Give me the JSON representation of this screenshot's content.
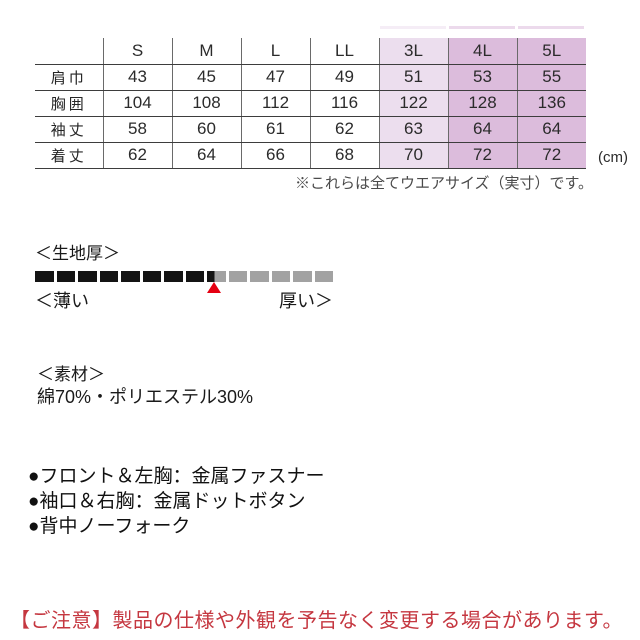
{
  "size_table": {
    "unit_label": "(cm)",
    "columns": [
      "S",
      "M",
      "L",
      "LL",
      "3L",
      "4L",
      "5L"
    ],
    "rows": [
      {
        "label": "肩巾",
        "values": [
          43,
          45,
          47,
          49,
          51,
          53,
          55
        ]
      },
      {
        "label": "胸囲",
        "values": [
          104,
          108,
          112,
          116,
          122,
          128,
          136
        ]
      },
      {
        "label": "袖丈",
        "values": [
          58,
          60,
          61,
          62,
          63,
          64,
          64
        ]
      },
      {
        "label": "着丈",
        "values": [
          62,
          64,
          66,
          68,
          70,
          72,
          72
        ]
      }
    ],
    "note": "※これらは全てウエアサイズ（実寸）です。",
    "highlight_light_color": "#ecdeee",
    "highlight_dark_color": "#dcbcdc"
  },
  "fabric_thickness": {
    "title": "＜生地厚＞",
    "left_label": "＜薄い",
    "right_label": "厚い＞",
    "segments_total": 14,
    "filled_segments": 8.4,
    "filled_color": "#141414",
    "empty_color": "#a2a2a2",
    "marker_color": "#e50012"
  },
  "material": {
    "title": "＜素材＞",
    "composition": "綿70%・ポリエステル30%"
  },
  "features": [
    "●フロント＆左胸：金属ファスナー",
    "●袖口＆右胸：金属ドットボタン",
    "●背中ノーフォーク"
  ],
  "notice": {
    "text": "【ご注意】製品の仕様や外観を予告なく変更する場合があります。",
    "color": "#c53740"
  }
}
